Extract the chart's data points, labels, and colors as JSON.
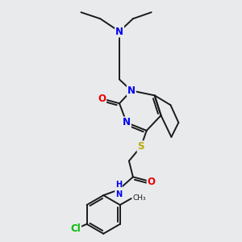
{
  "background_color": "#e8eaec",
  "bond_color": "#1a1a1a",
  "bond_width": 1.4,
  "atom_colors": {
    "N": "#0000ee",
    "O": "#ee0000",
    "S": "#bbaa00",
    "Cl": "#00bb00",
    "C": "#1a1a1a",
    "H": "#444444"
  },
  "font_size_main": 8.5,
  "font_size_small": 7.0
}
